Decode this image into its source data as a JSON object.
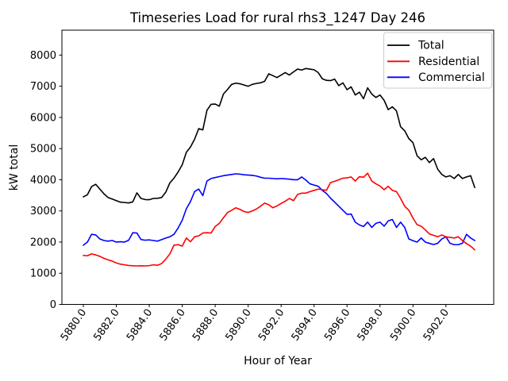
{
  "chart_data": {
    "type": "line",
    "title": "Timeseries Load for rural rhs3_1247  Day 246",
    "xlabel": "Hour of Year",
    "ylabel": "kW total",
    "xlim": [
      5878.7,
      5904.9
    ],
    "ylim": [
      0,
      8800
    ],
    "grid": false,
    "legend_position": "upper right",
    "x_ticks": [
      "5880.0",
      "5882.0",
      "5884.0",
      "5886.0",
      "5888.0",
      "5890.0",
      "5892.0",
      "5894.0",
      "5896.0",
      "5898.0",
      "5900.0",
      "5902.0"
    ],
    "y_ticks": [
      0,
      1000,
      2000,
      3000,
      4000,
      5000,
      6000,
      7000,
      8000
    ],
    "x": [
      5880.0,
      5880.25,
      5880.5,
      5880.75,
      5881.0,
      5881.25,
      5881.5,
      5881.75,
      5882.0,
      5882.25,
      5882.5,
      5882.75,
      5883.0,
      5883.25,
      5883.5,
      5883.75,
      5884.0,
      5884.25,
      5884.5,
      5884.75,
      5885.0,
      5885.25,
      5885.5,
      5885.75,
      5886.0,
      5886.25,
      5886.5,
      5886.75,
      5887.0,
      5887.25,
      5887.5,
      5887.75,
      5888.0,
      5888.25,
      5888.5,
      5888.75,
      5889.0,
      5889.25,
      5889.5,
      5889.75,
      5890.0,
      5890.25,
      5890.5,
      5890.75,
      5891.0,
      5891.25,
      5891.5,
      5891.75,
      5892.0,
      5892.25,
      5892.5,
      5892.75,
      5893.0,
      5893.25,
      5893.5,
      5893.75,
      5894.0,
      5894.25,
      5894.5,
      5894.75,
      5895.0,
      5895.25,
      5895.5,
      5895.75,
      5896.0,
      5896.25,
      5896.5,
      5896.75,
      5897.0,
      5897.25,
      5897.5,
      5897.75,
      5898.0,
      5898.25,
      5898.5,
      5898.75,
      5899.0,
      5899.25,
      5899.5,
      5899.75,
      5900.0,
      5900.25,
      5900.5,
      5900.75,
      5901.0,
      5901.25,
      5901.5,
      5901.75,
      5902.0,
      5902.25,
      5902.5,
      5902.75,
      5903.0,
      5903.25,
      5903.5,
      5903.75
    ],
    "series": [
      {
        "name": "Total",
        "color": "#000000",
        "values": [
          3450,
          3520,
          3780,
          3855,
          3700,
          3550,
          3430,
          3380,
          3330,
          3280,
          3270,
          3255,
          3290,
          3580,
          3400,
          3365,
          3360,
          3400,
          3405,
          3430,
          3600,
          3900,
          4050,
          4250,
          4480,
          4880,
          5050,
          5300,
          5640,
          5600,
          6230,
          6420,
          6430,
          6360,
          6750,
          6900,
          7060,
          7100,
          7080,
          7040,
          7000,
          7060,
          7090,
          7110,
          7160,
          7400,
          7340,
          7280,
          7360,
          7440,
          7360,
          7460,
          7550,
          7520,
          7570,
          7550,
          7530,
          7440,
          7240,
          7190,
          7180,
          7230,
          7020,
          7110,
          6890,
          6980,
          6720,
          6810,
          6600,
          6950,
          6750,
          6640,
          6720,
          6550,
          6250,
          6340,
          6210,
          5700,
          5570,
          5320,
          5190,
          4770,
          4640,
          4720,
          4550,
          4680,
          4340,
          4170,
          4090,
          4130,
          4040,
          4170,
          4040,
          4090,
          4130,
          3750
        ]
      },
      {
        "name": "Residential",
        "color": "#ff0000",
        "values": [
          1570,
          1560,
          1620,
          1590,
          1540,
          1480,
          1430,
          1390,
          1330,
          1290,
          1270,
          1250,
          1240,
          1235,
          1240,
          1235,
          1245,
          1270,
          1255,
          1310,
          1450,
          1620,
          1900,
          1920,
          1870,
          2130,
          2010,
          2170,
          2200,
          2290,
          2300,
          2290,
          2500,
          2600,
          2780,
          2950,
          3020,
          3100,
          3050,
          2980,
          2950,
          3000,
          3060,
          3150,
          3250,
          3200,
          3100,
          3160,
          3240,
          3310,
          3400,
          3330,
          3530,
          3570,
          3570,
          3620,
          3660,
          3700,
          3680,
          3660,
          3910,
          3950,
          4000,
          4050,
          4060,
          4090,
          3960,
          4100,
          4080,
          4210,
          3960,
          3870,
          3800,
          3680,
          3790,
          3660,
          3620,
          3400,
          3150,
          3020,
          2770,
          2560,
          2510,
          2390,
          2260,
          2215,
          2170,
          2230,
          2170,
          2150,
          2130,
          2170,
          2050,
          1950,
          1870,
          1750
        ]
      },
      {
        "name": "Commercial",
        "color": "#0000ff",
        "values": [
          1900,
          2000,
          2250,
          2230,
          2100,
          2050,
          2030,
          2050,
          2000,
          2010,
          2000,
          2060,
          2300,
          2290,
          2080,
          2060,
          2070,
          2050,
          2030,
          2080,
          2130,
          2170,
          2250,
          2450,
          2700,
          3070,
          3300,
          3620,
          3700,
          3490,
          3960,
          4040,
          4070,
          4100,
          4130,
          4150,
          4170,
          4190,
          4180,
          4160,
          4150,
          4140,
          4120,
          4080,
          4050,
          4050,
          4040,
          4030,
          4040,
          4030,
          4020,
          4000,
          4000,
          4090,
          3990,
          3870,
          3830,
          3790,
          3660,
          3560,
          3410,
          3280,
          3150,
          3020,
          2890,
          2900,
          2640,
          2550,
          2500,
          2640,
          2470,
          2600,
          2640,
          2510,
          2680,
          2725,
          2470,
          2640,
          2470,
          2100,
          2045,
          2000,
          2130,
          2000,
          1960,
          1920,
          1960,
          2100,
          2170,
          1960,
          1917,
          1917,
          1960,
          2250,
          2130,
          2050
        ]
      }
    ]
  }
}
